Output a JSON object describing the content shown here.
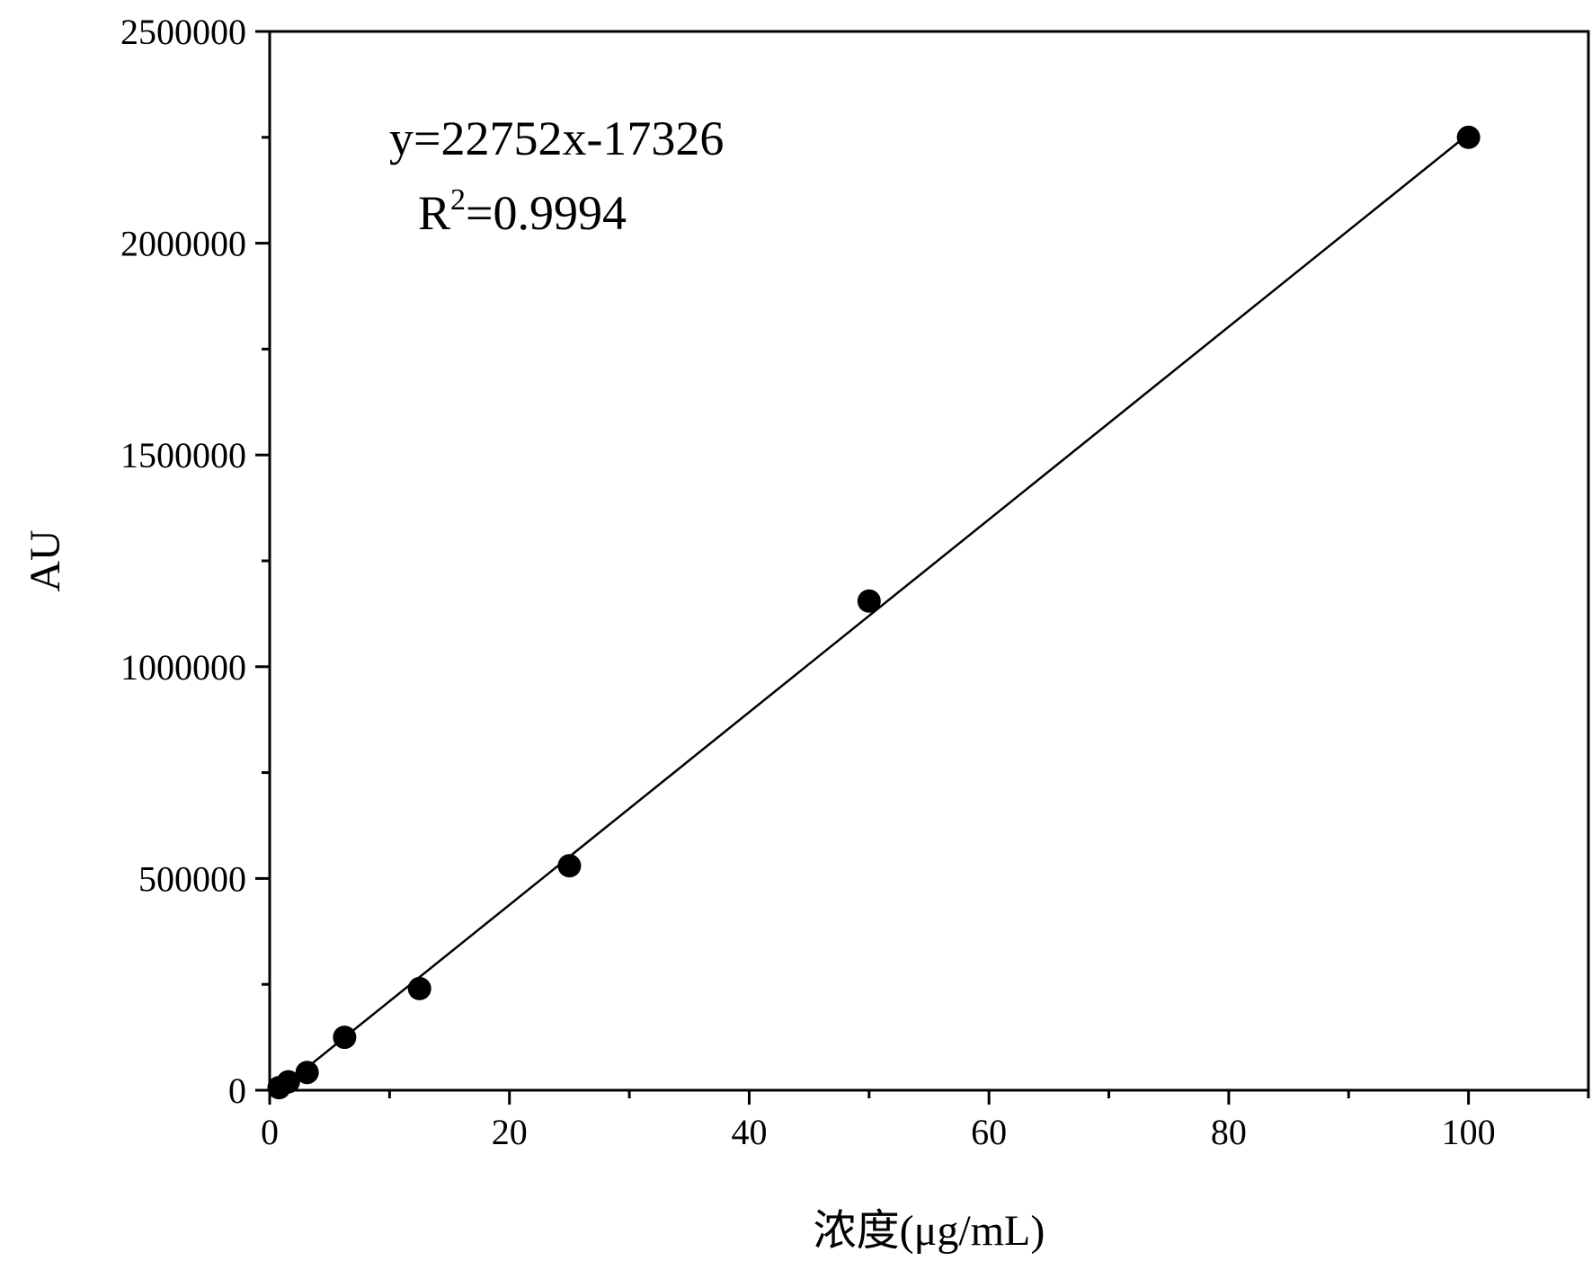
{
  "chart_data": {
    "type": "scatter",
    "title": "",
    "xlabel": "浓度(μg/mL)",
    "ylabel": "AU",
    "xlim": [
      0,
      110
    ],
    "ylim": [
      0,
      2500000
    ],
    "x_ticks": [
      0,
      20,
      40,
      60,
      80,
      100
    ],
    "x_tick_labels": [
      "0",
      "20",
      "40",
      "60",
      "80",
      "100"
    ],
    "x_minor_ticks": [
      10,
      30,
      50,
      70,
      90,
      110
    ],
    "y_ticks": [
      0,
      500000,
      1000000,
      1500000,
      2000000,
      2500000
    ],
    "y_tick_labels": [
      "0",
      "500000",
      "1000000",
      "1500000",
      "2000000",
      "2500000"
    ],
    "y_minor_ticks": [
      250000,
      750000,
      1250000,
      1750000,
      2250000
    ],
    "grid": false,
    "legend": "none",
    "series": [
      {
        "x": [
          0.78,
          1.56,
          3.125,
          6.25,
          12.5,
          25,
          50,
          100
        ],
        "y": [
          6000,
          20000,
          42000,
          125000,
          240000,
          530000,
          1155000,
          2250000
        ],
        "marker": "filled-circle",
        "color": "#000000"
      }
    ],
    "fit_line": {
      "slope": 22752,
      "intercept": -17326,
      "x_range": [
        0.78,
        100
      ],
      "color": "#000000"
    },
    "annotations": {
      "equation": "y=22752x-17326",
      "r2_prefix": "R",
      "r2_superscript": "2",
      "r2_value": "=0.9994"
    }
  }
}
